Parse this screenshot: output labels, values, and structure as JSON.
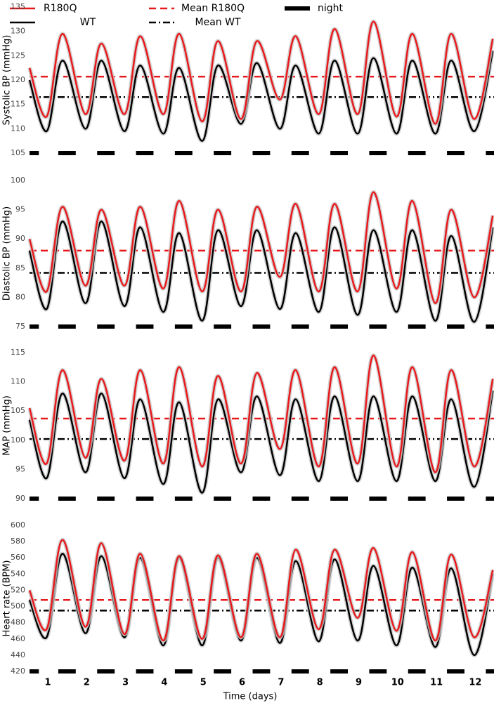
{
  "legend": [
    {
      "label": "R180Q",
      "color": "#e8191c",
      "style": "solid"
    },
    {
      "label": "Mean R180Q",
      "color": "#e8191c",
      "style": "dashed"
    },
    {
      "label": "night",
      "color": "#000000",
      "style": "thick"
    },
    {
      "label": "WT",
      "color": "#000000",
      "style": "solid"
    },
    {
      "label": "Mean WT",
      "color": "#000000",
      "style": "dashdot"
    }
  ],
  "xlabel": "Time (days)",
  "xlim": [
    0.53,
    12.48
  ],
  "xticks": [
    1,
    2,
    3,
    4,
    5,
    6,
    7,
    8,
    9,
    10,
    11,
    12
  ],
  "x": [
    0.53,
    0.97,
    1.38,
    1.97,
    2.38,
    2.97,
    3.38,
    3.97,
    4.38,
    4.97,
    5.38,
    5.97,
    6.38,
    6.97,
    7.38,
    7.97,
    8.38,
    8.97,
    9.38,
    9.97,
    10.38,
    10.97,
    11.38,
    11.97,
    12.45
  ],
  "night": [
    [
      0.53,
      0.77
    ],
    [
      1.27,
      1.72
    ],
    [
      2.27,
      2.72
    ],
    [
      3.27,
      3.72
    ],
    [
      4.27,
      4.72
    ],
    [
      5.27,
      5.72
    ],
    [
      6.27,
      6.72
    ],
    [
      7.27,
      7.72
    ],
    [
      8.27,
      8.72
    ],
    [
      9.27,
      9.72
    ],
    [
      10.27,
      10.72
    ],
    [
      11.27,
      11.72
    ],
    [
      12.27,
      12.48
    ]
  ],
  "chart_data": [
    {
      "type": "line",
      "ylabel": "Systolic BP (mmHg)",
      "ylim": [
        105,
        135
      ],
      "yticks": [
        105,
        110,
        115,
        120,
        125,
        130,
        135
      ],
      "series": [
        {
          "color": "#e8191c",
          "mean": 120.7,
          "values": [
            122.5,
            112.5,
            129.5,
            113,
            127.5,
            113,
            129,
            113,
            129.5,
            111.5,
            128,
            112,
            128,
            116,
            129,
            113,
            130.5,
            113,
            132,
            112.5,
            129.5,
            111,
            129.5,
            112,
            128.5
          ]
        },
        {
          "color": "#000000",
          "mean": 116.5,
          "values": [
            120,
            109.5,
            124,
            110,
            124,
            109.5,
            123,
            109,
            122.5,
            107.5,
            123,
            111,
            123.5,
            110,
            123,
            109,
            124,
            109,
            124.5,
            109,
            124,
            109,
            124,
            109.5,
            126
          ]
        }
      ]
    },
    {
      "type": "line",
      "ylabel": "Diastolic BP (mmHg)",
      "ylim": [
        75,
        100
      ],
      "yticks": [
        75,
        80,
        85,
        90,
        95,
        100
      ],
      "series": [
        {
          "color": "#e8191c",
          "mean": 88,
          "values": [
            90,
            81,
            95.5,
            82,
            95,
            82,
            95.5,
            81.5,
            96.5,
            81,
            95,
            81,
            95.5,
            83.5,
            96,
            81,
            96,
            81,
            98,
            81.5,
            96.5,
            79,
            95,
            80,
            94
          ]
        },
        {
          "color": "#000000",
          "mean": 84.2,
          "values": [
            88,
            78,
            93,
            79,
            93,
            78.5,
            92,
            77.5,
            91,
            76,
            91.5,
            78.5,
            91.5,
            78,
            91,
            77.5,
            92,
            77,
            91.5,
            77.5,
            91.5,
            76,
            90.5,
            75.8,
            92
          ]
        }
      ]
    },
    {
      "type": "line",
      "ylabel": "MAP (mmHg)",
      "ylim": [
        90,
        115
      ],
      "yticks": [
        90,
        95,
        100,
        105,
        110,
        115
      ],
      "series": [
        {
          "color": "#e8191c",
          "mean": 103.7,
          "values": [
            105.5,
            96,
            112,
            97,
            110.5,
            96.5,
            112,
            96,
            112.5,
            95.5,
            111,
            96,
            111.5,
            98.5,
            112,
            95.5,
            112.5,
            96,
            114.5,
            95.5,
            112.5,
            94.5,
            112,
            95.5,
            110.5
          ]
        },
        {
          "color": "#000000",
          "mean": 100.2,
          "values": [
            103.5,
            93.5,
            108,
            94.5,
            108,
            93.5,
            107,
            92.5,
            106.5,
            91,
            107,
            94.5,
            107.5,
            94,
            107,
            93,
            107.5,
            93,
            107.5,
            93,
            107.5,
            93,
            107,
            92,
            108.5
          ]
        }
      ]
    },
    {
      "type": "line",
      "ylabel": "Heart rate (BPM)",
      "ylim": [
        420,
        600
      ],
      "yticks": [
        420,
        440,
        460,
        480,
        500,
        520,
        540,
        560,
        580,
        600
      ],
      "series": [
        {
          "color": "#e8191c",
          "mean": 508,
          "values": [
            520,
            472,
            582,
            475,
            578,
            466,
            565,
            458,
            562,
            460,
            563,
            462,
            565,
            462,
            570,
            472,
            570,
            486,
            572,
            470,
            567,
            458,
            564,
            462,
            545
          ]
        },
        {
          "color": "#000000",
          "mean": 495,
          "values": [
            508,
            462,
            565,
            467,
            562,
            462,
            560,
            452,
            560,
            452,
            560,
            458,
            560,
            455,
            556,
            457,
            558,
            458,
            550,
            452,
            548,
            450,
            547,
            440,
            540
          ]
        }
      ]
    }
  ]
}
